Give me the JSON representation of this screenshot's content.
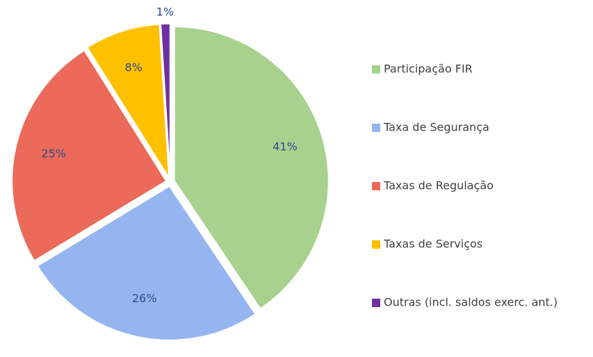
{
  "chart_data": {
    "type": "pie",
    "categories": [
      "Participação FIR",
      "Taxa de Segurança",
      "Taxas de Regulação",
      "Taxas de Serviços",
      "Outras (incl. saldos exerc. ant.)"
    ],
    "values": [
      41,
      26,
      25,
      8,
      1
    ],
    "value_labels": [
      "41%",
      "26%",
      "25%",
      "8%",
      "1%"
    ],
    "colors": [
      "#a9d18e",
      "#95b5f0",
      "#ec6a5a",
      "#ffc000",
      "#7030a0"
    ],
    "legend": "right"
  }
}
